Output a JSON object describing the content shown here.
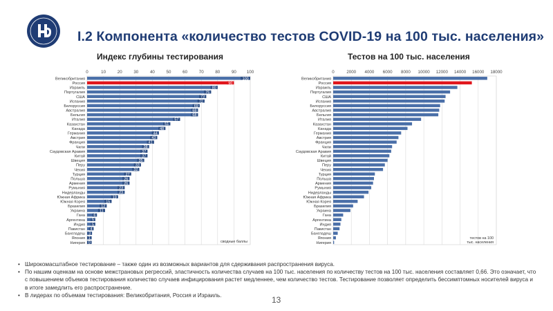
{
  "title": "I.2 Компонента «количество тестов COVID-19 на 100 тыс. населения»",
  "page_number": "13",
  "brand_color": "#1f3c74",
  "chart_data": [
    {
      "type": "bar",
      "orientation": "horizontal",
      "title": "Индекс глубины тестирования",
      "xlabel": "сводные баллы",
      "xlim": [
        0,
        100
      ],
      "ticks": [
        0,
        10,
        20,
        30,
        40,
        50,
        60,
        70,
        80,
        90,
        100
      ],
      "bar_color": "#4a6fa8",
      "highlight_color": "#e0161c",
      "highlight": [
        "Россия"
      ],
      "grid": true,
      "categories": [
        "Великобритания",
        "Россия",
        "Израиль",
        "Португалия",
        "США",
        "Испания",
        "Белоруссия",
        "Австралия",
        "Бельгия",
        "Италия",
        "Казахстан",
        "Канада",
        "Германия",
        "Австрия",
        "Франция",
        "Чили",
        "Саудовская Аравия",
        "Китай",
        "Швеция",
        "Перу",
        "Чехия",
        "Турция",
        "Польша",
        "Армения",
        "Румыния",
        "Нидерланды",
        "Южная Африка",
        "Южная Корея",
        "Бразилия",
        "Украина",
        "Гана",
        "Аргентина",
        "Индия",
        "Пакистан",
        "Бангладеш",
        "Япония",
        "Нигерия"
      ],
      "values": [
        100,
        90,
        80,
        76,
        73,
        72,
        69,
        68,
        68,
        57,
        51,
        48,
        44,
        43,
        41,
        38,
        37,
        37,
        35,
        33,
        32,
        27,
        26,
        26,
        23,
        23,
        19,
        15,
        12,
        11,
        6,
        5,
        5,
        4,
        3,
        1,
        0
      ],
      "labels": [
        "100",
        "90",
        "80",
        "76",
        "73",
        "72",
        "69",
        "68",
        "68",
        "57",
        "51",
        "48",
        "44",
        "43",
        "41",
        "38",
        "37",
        "37",
        "35",
        "33",
        "32",
        "27",
        "26",
        "26",
        "23",
        "23",
        "19",
        "15",
        "12",
        "11",
        "6",
        "5",
        "5",
        "4",
        "3",
        "1",
        "0"
      ]
    },
    {
      "type": "bar",
      "orientation": "horizontal",
      "title": "Тестов на 100 тыс. населения",
      "xlabel": "тестов на 100 тыс. населения",
      "xlim": [
        0,
        18000
      ],
      "ticks": [
        0,
        2000,
        4000,
        6000,
        8000,
        10000,
        12000,
        14000,
        16000,
        18000
      ],
      "bar_color": "#4a6fa8",
      "highlight_color": "#e0161c",
      "highlight": [
        "Россия"
      ],
      "grid": true,
      "categories": [
        "Великобритания",
        "Россия",
        "Израиль",
        "Португалия",
        "США",
        "Испания",
        "Белоруссия",
        "Австралия",
        "Бельгия",
        "Италия",
        "Казахстан",
        "Канада",
        "Германия",
        "Австрия",
        "Франция",
        "Чили",
        "Саудовская Аравия",
        "Китай",
        "Швеция",
        "Перу",
        "Чехия",
        "Турция",
        "Польша",
        "Армения",
        "Румыния",
        "Нидерланды",
        "Южная Африка",
        "Южная Корея",
        "Бразилия",
        "Украина",
        "Гана",
        "Аргентина",
        "Индия",
        "Пакистан",
        "Бангладеш",
        "Япония",
        "Нигерия"
      ],
      "values": [
        17000,
        15300,
        13700,
        12900,
        12400,
        12300,
        11800,
        11700,
        11600,
        9700,
        8700,
        8200,
        7500,
        7200,
        7000,
        6500,
        6400,
        6200,
        6000,
        5700,
        5500,
        4600,
        4500,
        4400,
        4200,
        3900,
        3400,
        2700,
        2200,
        1900,
        1100,
        900,
        800,
        700,
        500,
        300,
        100
      ]
    }
  ],
  "bullets": [
    "Широкомасштабное тестирование – также один из возможных вариантов для сдерживания распространения вируса.",
    "По нашим оценкам на основе межстрановых регрессий, эластичность количества случаев на 100 тыс. населения по количеству тестов на 100 тыс. населения составляет 0,66. Это означает, что с повышением объемов тестирования количество случаев инфицирования растет медленнее, чем количество тестов. Тестирование позволяет определить бессимптомных носителей вируса и в итоге замедлить его распространение.",
    "В лидерах по объемам тестирования: Великобритания, Россия и Израиль."
  ]
}
